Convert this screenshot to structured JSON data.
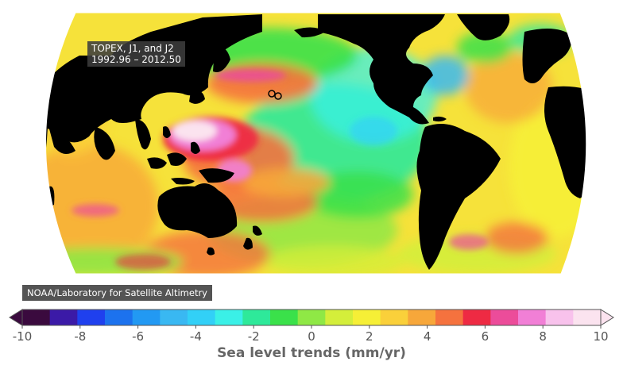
{
  "map": {
    "mission_label_line1": "TOPEX, J1, and J2",
    "mission_label_line2": "1992.96 – 2012.50",
    "credit": "NOAA/Laboratory for Satellite Altimetry",
    "land_color": "#000000",
    "ocean_background_color": "#f6e23a"
  },
  "colorbar": {
    "title": "Sea level trends (mm/yr)",
    "min": -10,
    "max": 10,
    "step": 1,
    "tick_labels": [
      "-10",
      "-8",
      "-6",
      "-4",
      "-2",
      "0",
      "2",
      "4",
      "6",
      "8",
      "10"
    ],
    "colors": [
      "#3a0a3e",
      "#3b1aa7",
      "#1f40ee",
      "#1c72ee",
      "#2299f3",
      "#39b8f2",
      "#32d0f7",
      "#3af0e7",
      "#2ee99a",
      "#3ae14a",
      "#8fe845",
      "#d4ee3a",
      "#f6ef36",
      "#fad03a",
      "#f7a73a",
      "#f5723e",
      "#ee2a43",
      "#ec4c9a",
      "#f17fd6",
      "#f8c2ec",
      "#fbe3ef"
    ]
  }
}
